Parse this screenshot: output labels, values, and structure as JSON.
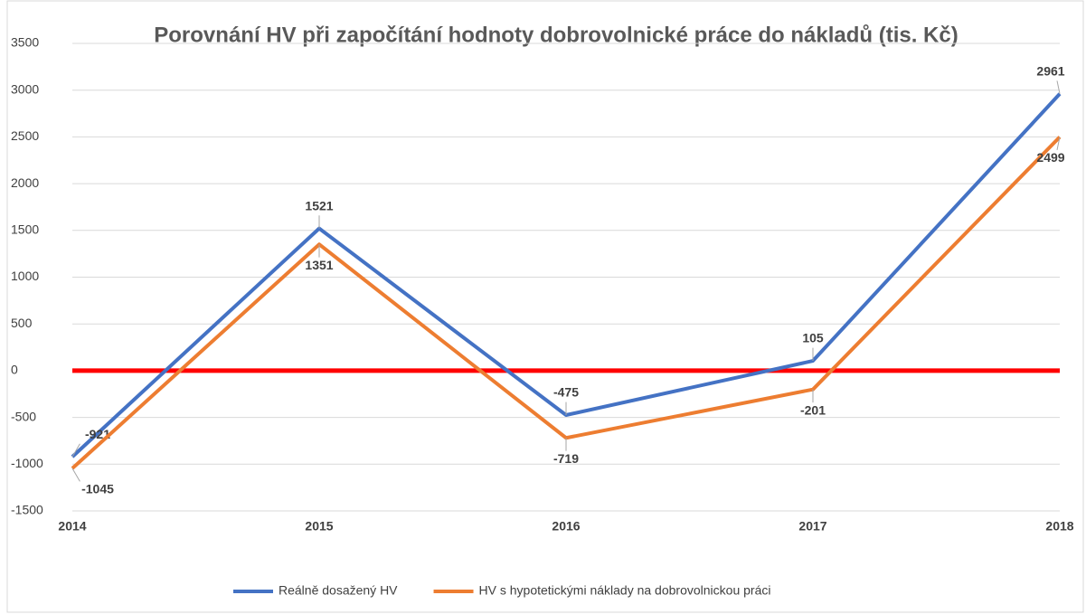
{
  "chart_data": {
    "type": "line",
    "title": "Porovnání HV při započítání hodnoty dobrovolnické práce do nákladů (tis. Kč)",
    "categories": [
      "2014",
      "2015",
      "2016",
      "2017",
      "2018"
    ],
    "series": [
      {
        "name": "Reálně dosažený HV",
        "color": "#4472c4",
        "values": [
          -921,
          1521,
          -475,
          105,
          2961
        ]
      },
      {
        "name": "HV s hypotetickými náklady na dobrovolnickou práci",
        "color": "#ed7d31",
        "values": [
          -1045,
          1351,
          -719,
          -201,
          2499
        ]
      }
    ],
    "ylim": [
      -1500,
      3500
    ],
    "yticks": [
      -1500,
      -1000,
      -500,
      0,
      500,
      1000,
      1500,
      2000,
      2500,
      3000,
      3500
    ],
    "grid": true,
    "zero_line_color": "#ff0000",
    "legend": "bottom"
  }
}
